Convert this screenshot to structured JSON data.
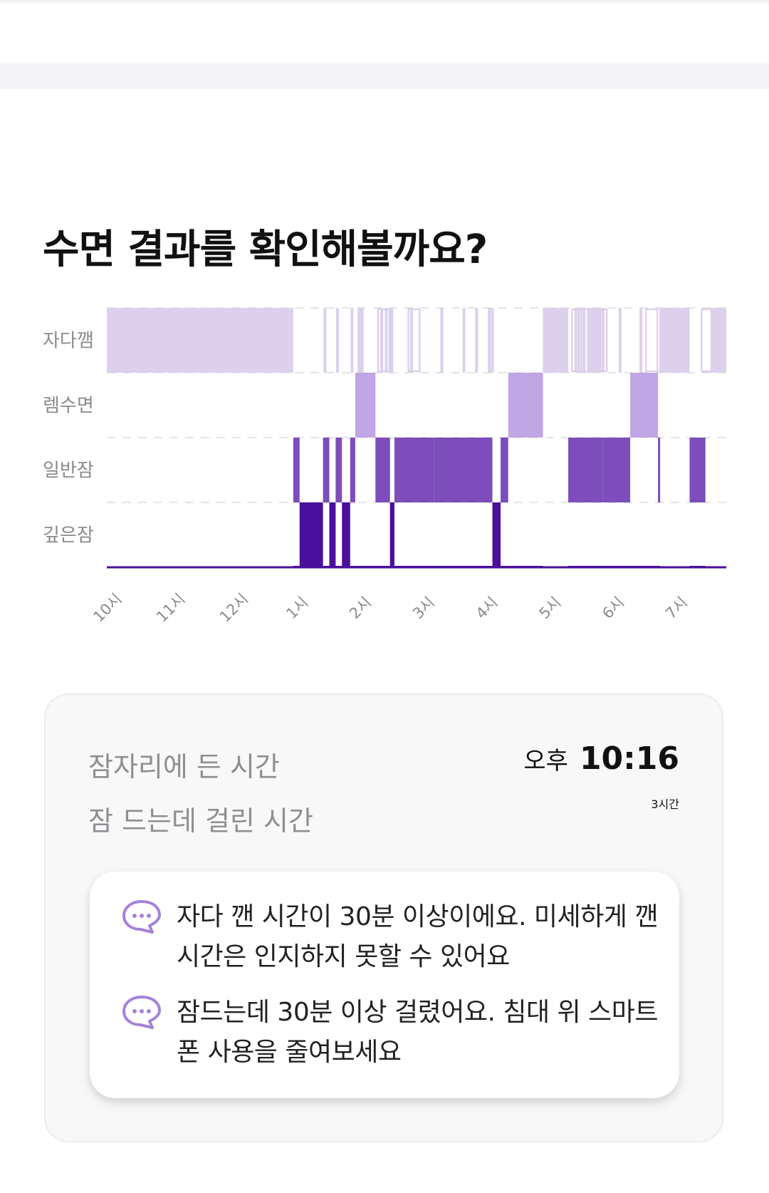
{
  "title": "수면 결과를 확인해볼까요?",
  "colors": {
    "awake": "#dcd0ec",
    "rem": "#c0a6e4",
    "light": "#7d4dbb",
    "deep": "#4a0f9c",
    "awake_outline": "#d6c9ea"
  },
  "chart_data": {
    "type": "hypnogram",
    "stages": [
      "자다깸",
      "렘수면",
      "일반잠",
      "깊은잠"
    ],
    "x_tick_labels": [
      "10시",
      "11시",
      "12시",
      "1시",
      "2시",
      "3시",
      "4시",
      "5시",
      "6시",
      "7시"
    ],
    "x_range_hours": [
      22.0,
      31.8
    ],
    "segments": [
      {
        "stage": "자다깸",
        "start": 22.0,
        "end": 24.95
      },
      {
        "stage": "일반잠",
        "start": 24.95,
        "end": 25.05
      },
      {
        "stage": "깊은잠",
        "start": 25.05,
        "end": 25.42
      },
      {
        "stage": "일반잠",
        "start": 25.42,
        "end": 25.52
      },
      {
        "stage": "깊은잠",
        "start": 25.52,
        "end": 25.62
      },
      {
        "stage": "일반잠",
        "start": 25.62,
        "end": 25.72
      },
      {
        "stage": "깊은잠",
        "start": 25.72,
        "end": 25.85
      },
      {
        "stage": "일반잠",
        "start": 25.85,
        "end": 25.93
      },
      {
        "stage": "렘수면",
        "start": 25.93,
        "end": 26.25
      },
      {
        "stage": "일반잠",
        "start": 26.25,
        "end": 26.48
      },
      {
        "stage": "깊은잠",
        "start": 26.48,
        "end": 26.55
      },
      {
        "stage": "일반잠",
        "start": 26.55,
        "end": 26.72
      },
      {
        "stage": "일반잠",
        "start": 26.72,
        "end": 27.18
      },
      {
        "stage": "일반잠",
        "start": 27.18,
        "end": 28.1
      },
      {
        "stage": "깊은잠",
        "start": 28.1,
        "end": 28.23
      },
      {
        "stage": "일반잠",
        "start": 28.23,
        "end": 28.35
      },
      {
        "stage": "렘수면",
        "start": 28.35,
        "end": 28.9
      },
      {
        "stage": "자다깸",
        "start": 28.9,
        "end": 29.3
      },
      {
        "stage": "일반잠",
        "start": 29.3,
        "end": 29.85
      },
      {
        "stage": "일반잠",
        "start": 29.85,
        "end": 30.28
      },
      {
        "stage": "렘수면",
        "start": 30.28,
        "end": 30.72
      },
      {
        "stage": "일반잠",
        "start": 30.72,
        "end": 30.74
      },
      {
        "stage": "자다깸",
        "start": 30.74,
        "end": 31.22
      },
      {
        "stage": "일반잠",
        "start": 31.22,
        "end": 31.47
      },
      {
        "stage": "자다깸",
        "start": 31.55,
        "end": 31.8
      }
    ],
    "brief_awakenings": [
      25.45,
      25.65,
      25.88,
      25.99,
      26.0,
      26.04,
      26.35,
      26.42,
      26.5,
      26.82,
      27.3,
      27.65,
      27.85,
      28.05,
      28.1,
      29.42,
      29.47,
      29.55,
      29.62,
      29.66,
      29.7,
      29.75,
      29.78,
      29.85,
      30.12,
      30.45,
      30.92
    ],
    "faint_bars": [
      26.38,
      26.43,
      26.86,
      29.0,
      29.12,
      29.45,
      29.52,
      29.6,
      29.72,
      29.82,
      30.62,
      31.5
    ]
  },
  "summary": {
    "bedtime_label": "잠자리에 든 시간",
    "bedtime_ampm": "오후",
    "bedtime_value": "10:16",
    "latency_label": "잠 드는데 걸린 시간",
    "latency_value": "3시간"
  },
  "tips": [
    {
      "icon": "chat-bubble-icon",
      "text": "자다 깬 시간이 30분 이상이에요. 미세하게 깬 시간은 인지하지 못할 수 있어요"
    },
    {
      "icon": "chat-bubble-icon",
      "text": "잠드는데 30분 이상 걸렸어요. 침대 위 스마트폰 사용을 줄여보세요"
    }
  ]
}
